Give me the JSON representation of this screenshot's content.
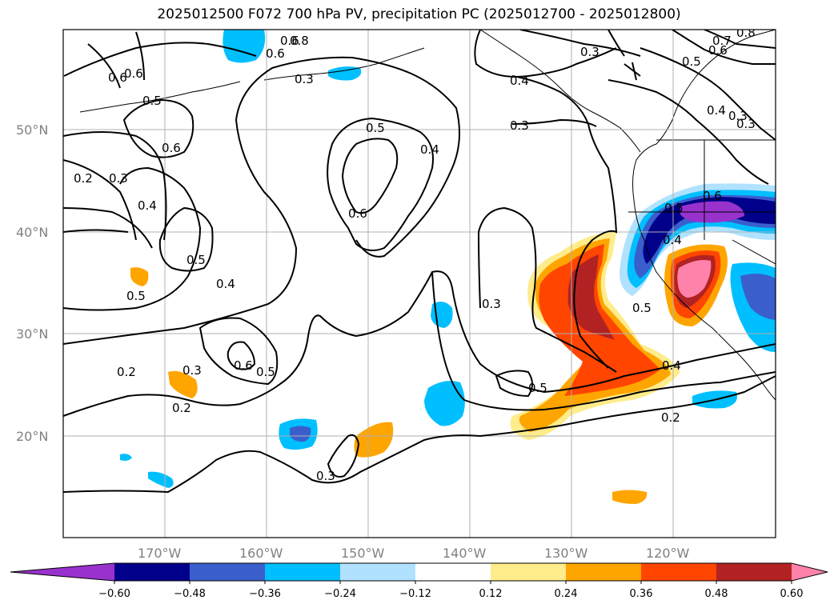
{
  "title": "2025012500 F072 700 hPa PV, precipitation PC (2025012700 - 2025012800)",
  "map": {
    "lat_labels": [
      "50°N",
      "40°N",
      "30°N",
      "20°N"
    ],
    "lon_labels": [
      "170°W",
      "160°W",
      "150°W",
      "140°W",
      "130°W",
      "120°W"
    ],
    "contour_labels": [
      "0.8",
      "0.6",
      "0.3",
      "0.6",
      "0.5",
      "0.6",
      "0.2",
      "0.3",
      "0.4",
      "0.5",
      "0.5",
      "0.4",
      "0.6",
      "0.3",
      "0.4",
      "0.3",
      "0.7",
      "0.6",
      "0.5",
      "0.8",
      "0.4",
      "0.3",
      "0.6",
      "0.5",
      "0.4",
      "0.5",
      "0.3",
      "0.5",
      "0.4",
      "0.2",
      "0.3",
      "0.2",
      "0.6",
      "0.5",
      "0.3",
      "0.5",
      "0.2",
      "0.4",
      "0.6",
      "0.6",
      "0.3"
    ]
  },
  "colorbar": {
    "ticks": [
      "−0.60",
      "−0.48",
      "−0.36",
      "−0.24",
      "−0.12",
      "0.12",
      "0.24",
      "0.36",
      "0.48",
      "0.60"
    ],
    "colors": [
      "#9932CC",
      "#00008B",
      "#3A5FCD",
      "#00BFFF",
      "#B0E2FF",
      "#FFFFFF",
      "#FFEC8B",
      "#FFA500",
      "#FF4500",
      "#B22222",
      "#FF82AB"
    ]
  }
}
